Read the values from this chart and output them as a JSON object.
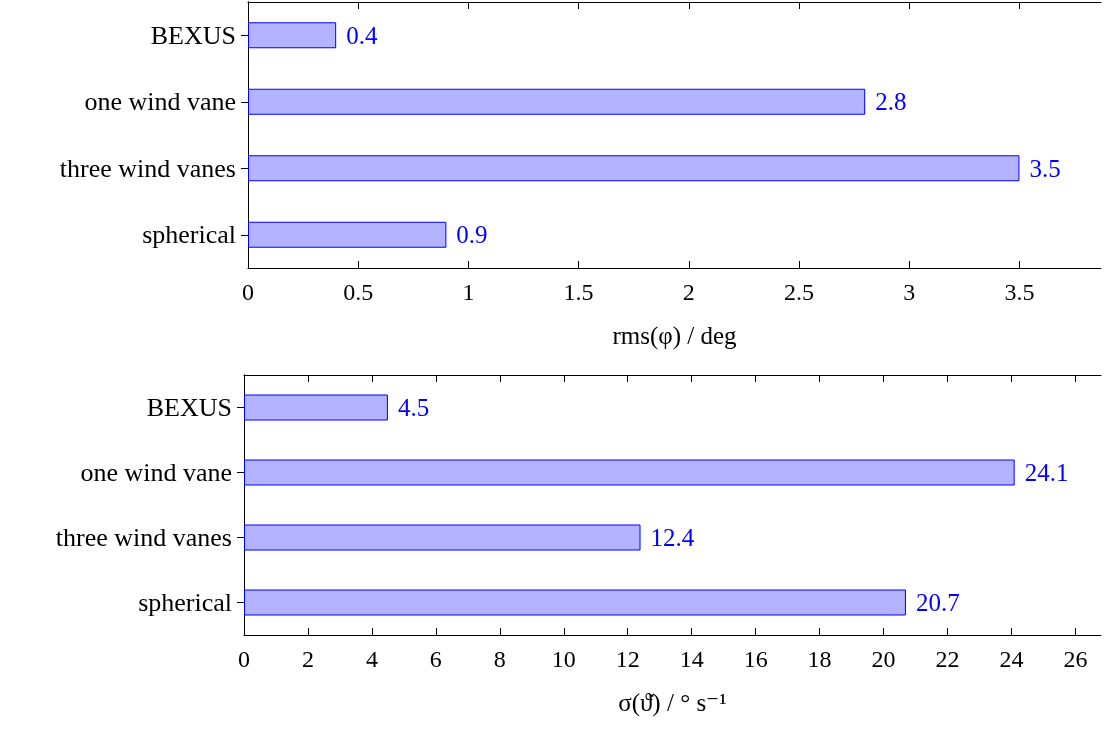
{
  "chart_data": [
    {
      "type": "bar",
      "orientation": "horizontal",
      "categories": [
        "BEXUS",
        "one wind vane",
        "three wind vanes",
        "spherical"
      ],
      "values": [
        0.4,
        2.8,
        3.5,
        0.9
      ],
      "color": "#b3b3ff",
      "xlim": [
        0,
        3.87
      ],
      "xticks": [
        0,
        0.5,
        1,
        1.5,
        2,
        2.5,
        3,
        3.5
      ],
      "xlabel": "rms(φ) / deg",
      "data_labels": true
    },
    {
      "type": "bar",
      "orientation": "horizontal",
      "categories": [
        "BEXUS",
        "one wind vane",
        "three wind vanes",
        "spherical"
      ],
      "values": [
        4.5,
        24.1,
        12.4,
        20.7
      ],
      "color": "#b3b3ff",
      "xlim": [
        0,
        26.8
      ],
      "xticks": [
        0,
        2,
        4,
        6,
        8,
        10,
        12,
        14,
        16,
        18,
        20,
        22,
        24,
        26
      ],
      "xlabel": "σ(ϑ̇) / ° s⁻¹",
      "data_labels": true
    }
  ]
}
